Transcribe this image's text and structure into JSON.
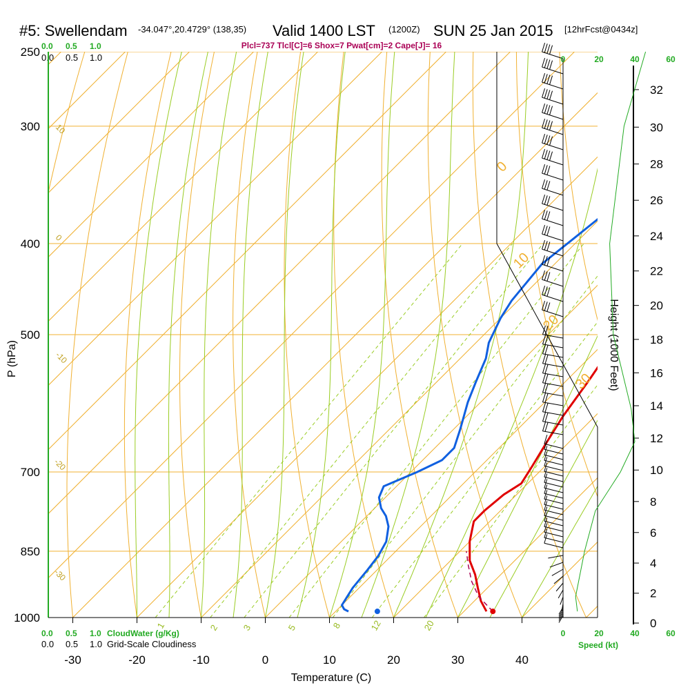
{
  "header": {
    "station": "#5: Swellendam",
    "coords": "-34.047°,20.4729° (138,35)",
    "valid": "Valid 1400 LST",
    "zulu": "(1200Z)",
    "date": "SUN 25 Jan 2015",
    "forecast": "[12hrFcst@0434z]",
    "indices": "Plcl=737 Tlcl[C]=6 Shox=7 Pwat[cm]=2 Cape[J]= 16"
  },
  "scales": {
    "cloud_green_top": [
      "0.0",
      "0.5",
      "1.0"
    ],
    "cloud_black_top": [
      "0.0",
      "0.5",
      "1.0"
    ],
    "cloud_green_bottom": [
      "0.0",
      "0.5",
      "1.0"
    ],
    "cloud_black_bottom": [
      "0.0",
      "0.5",
      "1.0"
    ],
    "cloudwater_label": "CloudWater (g/Kg)",
    "gridscale_label": "Grid-Scale Cloudiness",
    "speed_ticks": [
      "0",
      "20",
      "40",
      "60"
    ],
    "speed_label": "Speed (kt)"
  },
  "chart_data": {
    "type": "line",
    "subtype": "skew-t log-p sounding",
    "xlabel": "Temperature (C)",
    "ylabel": "P (hPa)",
    "y2label": "Height (1000 Feet)",
    "x_ticks": [
      -30,
      -20,
      -10,
      0,
      10,
      20,
      30,
      40
    ],
    "p_ticks": [
      250,
      300,
      400,
      500,
      700,
      850,
      1000
    ],
    "height_ticks": [
      0,
      2,
      4,
      6,
      8,
      10,
      12,
      14,
      16,
      18,
      20,
      22,
      24,
      26,
      28,
      30,
      32
    ],
    "xlim": [
      -35,
      45
    ],
    "plim": [
      1000,
      250
    ],
    "isotherm_labels": [
      "10",
      "0",
      "-10",
      "-20",
      "-30"
    ],
    "dry_adiabat_labels": [
      "0",
      "10",
      "20",
      "30"
    ],
    "mixing_ratio_labels": [
      "1",
      "2",
      "3",
      "5",
      "8",
      "12",
      "20"
    ],
    "series": [
      {
        "name": "Temperature",
        "color": "#e00000",
        "points": [
          [
            33.5,
            985
          ],
          [
            31,
            960
          ],
          [
            28.5,
            930
          ],
          [
            26,
            900
          ],
          [
            23,
            870
          ],
          [
            20,
            830
          ],
          [
            17.5,
            790
          ],
          [
            17.5,
            770
          ],
          [
            18,
            740
          ],
          [
            19,
            720
          ],
          [
            18,
            690
          ],
          [
            16.5,
            650
          ],
          [
            15,
            610
          ],
          [
            13.5,
            560
          ],
          [
            12,
            520
          ],
          [
            10,
            490
          ],
          [
            5,
            450
          ],
          [
            0,
            410
          ],
          [
            -5,
            370
          ],
          [
            -10,
            330
          ],
          [
            -14.5,
            300
          ],
          [
            -17,
            280
          ],
          [
            -18.5,
            265
          ]
        ]
      },
      {
        "name": "Dewpoint",
        "color": "#1060e0",
        "points": [
          [
            12,
            985
          ],
          [
            11,
            980
          ],
          [
            10,
            970
          ],
          [
            9.5,
            950
          ],
          [
            9,
            930
          ],
          [
            8.5,
            890
          ],
          [
            8,
            860
          ],
          [
            7,
            830
          ],
          [
            5,
            800
          ],
          [
            3,
            780
          ],
          [
            1,
            765
          ],
          [
            -1,
            745
          ],
          [
            -2,
            725
          ],
          [
            1,
            700
          ],
          [
            3,
            680
          ],
          [
            3,
            660
          ],
          [
            1,
            630
          ],
          [
            -2,
            590
          ],
          [
            -4,
            560
          ],
          [
            -6,
            530
          ],
          [
            -8,
            510
          ],
          [
            -10,
            480
          ],
          [
            -11,
            460
          ],
          [
            -12,
            420
          ],
          [
            -11,
            395
          ],
          [
            -10,
            370
          ],
          [
            -8.5,
            340
          ],
          [
            -7,
            300
          ],
          [
            -7,
            280
          ],
          [
            -6.5,
            265
          ]
        ]
      },
      {
        "name": "Parcel",
        "color": "#aa0055",
        "points": [
          [
            34.5,
            985
          ],
          [
            30,
            950
          ],
          [
            26.5,
            915
          ],
          [
            23.5,
            880
          ],
          [
            21,
            850
          ]
        ]
      },
      {
        "name": "Cloud Water Profile",
        "color": "#22aa22",
        "points": [
          [
            0.4,
            985
          ],
          [
            0.35,
            950
          ],
          [
            0.6,
            850
          ],
          [
            0.9,
            770
          ],
          [
            1.6,
            700
          ],
          [
            2,
            650
          ],
          [
            1.9,
            600
          ],
          [
            1.4,
            500
          ],
          [
            1.3,
            400
          ],
          [
            1.7,
            300
          ],
          [
            2.3,
            250
          ]
        ]
      }
    ],
    "surface": {
      "temperature": 34.5,
      "dewpoint": 16.5,
      "pressure": 985
    },
    "lcl_pressure": 737,
    "tlcl_c": 6,
    "showalter": 7,
    "pwat_cm": 2,
    "cape_j": 16
  }
}
